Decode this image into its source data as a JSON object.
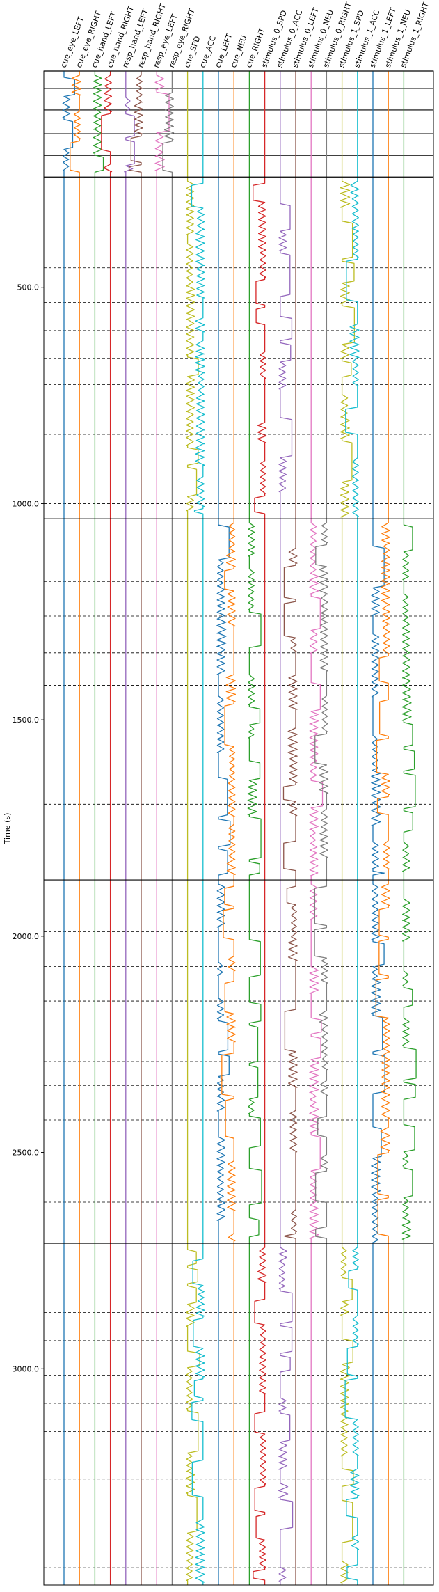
{
  "chart_data": {
    "type": "line",
    "title": "",
    "xlabel": "",
    "ylabel": "Time (s)",
    "y_inverted": true,
    "ylim": [
      0,
      3500
    ],
    "y_ticks": [
      500.0,
      1000.0,
      1500.0,
      2000.0,
      2500.0,
      3000.0
    ],
    "y_tick_labels": [
      "500.0",
      "1000.0",
      "1500.0",
      "2000.0",
      "2500.0",
      "3000.0"
    ],
    "grid": false,
    "legend": "none",
    "channels": [
      {
        "name": "cue_eye_LEFT",
        "color": "#1f77b4"
      },
      {
        "name": "cue_eye_RIGHT",
        "color": "#ff7f0e"
      },
      {
        "name": "cue_hand_LEFT",
        "color": "#2ca02c"
      },
      {
        "name": "cue_hand_RIGHT",
        "color": "#d62728"
      },
      {
        "name": "resp_hand_LEFT",
        "color": "#9467bd"
      },
      {
        "name": "resp_hand_RIGHT",
        "color": "#8c564b"
      },
      {
        "name": "resp_eye_LEFT",
        "color": "#e377c2"
      },
      {
        "name": "resp_eye_RIGHT",
        "color": "#7f7f7f"
      },
      {
        "name": "cue_SPD",
        "color": "#bcbd22"
      },
      {
        "name": "cue_ACC",
        "color": "#17becf"
      },
      {
        "name": "cue_LEFT",
        "color": "#1f77b4"
      },
      {
        "name": "cue_NEU",
        "color": "#ff7f0e"
      },
      {
        "name": "cue_RIGHT",
        "color": "#2ca02c"
      },
      {
        "name": "stimulus_0_SPD",
        "color": "#d62728"
      },
      {
        "name": "stimulus_0_ACC",
        "color": "#9467bd"
      },
      {
        "name": "stimulus_0_LEFT",
        "color": "#8c564b"
      },
      {
        "name": "stimulus_0_NEU",
        "color": "#e377c2"
      },
      {
        "name": "stimulus_0_RIGHT",
        "color": "#7f7f7f"
      },
      {
        "name": "stimulus_1_SPD",
        "color": "#bcbd22"
      },
      {
        "name": "stimulus_1_ACC",
        "color": "#17becf"
      },
      {
        "name": "stimulus_1_LEFT",
        "color": "#1f77b4"
      },
      {
        "name": "stimulus_1_NEU",
        "color": "#ff7f0e"
      },
      {
        "name": "stimulus_1_RIGHT",
        "color": "#2ca02c"
      }
    ],
    "run_boundaries_s": [
      0,
      245,
      1035,
      1870,
      2710,
      3500
    ],
    "runs": [
      {
        "start": 0,
        "end": 245,
        "active": [
          0,
          1,
          2,
          3,
          4,
          5,
          6,
          7
        ],
        "events": [
          0,
          40,
          90,
          145,
          195
        ]
      },
      {
        "start": 245,
        "end": 1035,
        "active": [
          8,
          9,
          13,
          14,
          18,
          19
        ],
        "events": [
          310,
          455,
          535,
          600,
          665,
          725,
          840,
          1000
        ]
      },
      {
        "start": 1035,
        "end": 1870,
        "active": [
          10,
          11,
          12,
          15,
          16,
          17,
          20,
          21,
          22
        ],
        "events": [
          1180,
          1260,
          1345,
          1420,
          1570,
          1695
        ]
      },
      {
        "start": 1870,
        "end": 2710,
        "active": [
          10,
          11,
          12,
          15,
          16,
          17,
          20,
          21,
          22
        ],
        "events": [
          1990,
          2070,
          2150,
          2210,
          2290,
          2345,
          2425,
          2545,
          2615
        ]
      },
      {
        "start": 2710,
        "end": 3500,
        "active": [
          8,
          9,
          13,
          14,
          18,
          19
        ],
        "events": [
          2870,
          2935,
          3015,
          3080,
          3145,
          3255,
          3460
        ]
      }
    ]
  }
}
